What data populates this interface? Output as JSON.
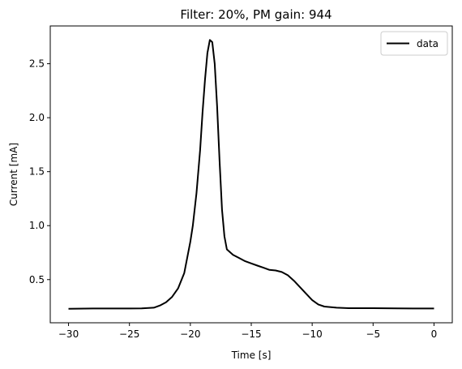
{
  "chart_data": {
    "type": "line",
    "title": "Filter: 20%, PM gain: 944",
    "xlabel": "Time [s]",
    "ylabel": "Current [mA]",
    "xlim": [
      -31.5,
      1.5
    ],
    "ylim": [
      0.1,
      2.85
    ],
    "xticks": [
      -30,
      -25,
      -20,
      -15,
      -10,
      -5,
      0
    ],
    "xtick_labels": [
      "−30",
      "−25",
      "−20",
      "−15",
      "−10",
      "−5",
      "0"
    ],
    "yticks": [
      0.5,
      1.0,
      1.5,
      2.0,
      2.5
    ],
    "ytick_labels": [
      "0.5",
      "1.0",
      "1.5",
      "2.0",
      "2.5"
    ],
    "grid": false,
    "legend_position": "top-right",
    "series": [
      {
        "name": "data",
        "color": "#000000",
        "x": [
          -30,
          -28,
          -26,
          -25,
          -24,
          -23,
          -22.5,
          -22,
          -21.5,
          -21,
          -20.5,
          -20,
          -19.8,
          -19.5,
          -19.2,
          -19,
          -18.8,
          -18.6,
          -18.4,
          -18.2,
          -18.0,
          -17.8,
          -17.6,
          -17.4,
          -17.2,
          -17.0,
          -16.5,
          -16,
          -15.5,
          -15,
          -14.5,
          -14,
          -13.5,
          -13,
          -12.5,
          -12,
          -11.5,
          -11,
          -10.5,
          -10,
          -9.5,
          -9,
          -8,
          -7,
          -5,
          -3,
          -1,
          0
        ],
        "y": [
          0.23,
          0.232,
          0.232,
          0.232,
          0.233,
          0.24,
          0.26,
          0.29,
          0.34,
          0.42,
          0.56,
          0.85,
          1.0,
          1.3,
          1.7,
          2.05,
          2.35,
          2.6,
          2.72,
          2.7,
          2.5,
          2.1,
          1.6,
          1.15,
          0.9,
          0.78,
          0.73,
          0.7,
          0.67,
          0.65,
          0.63,
          0.61,
          0.59,
          0.585,
          0.57,
          0.54,
          0.49,
          0.43,
          0.37,
          0.31,
          0.27,
          0.25,
          0.24,
          0.235,
          0.235,
          0.233,
          0.232,
          0.232
        ]
      }
    ]
  }
}
